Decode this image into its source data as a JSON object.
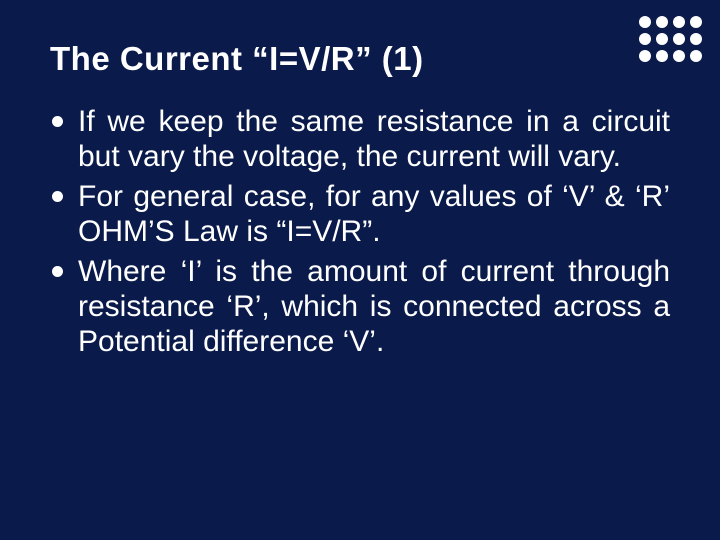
{
  "slide": {
    "background_color": "#0a1a4a",
    "text_color": "#ffffff",
    "title": "The Current “I=V/R” (1)",
    "title_fontsize": 33,
    "title_weight": "bold",
    "bullet_fontsize": 30,
    "bullet_marker": {
      "shape": "circle",
      "size": 11,
      "color": "#ffffff"
    },
    "bullets": [
      "If we keep the same resistance in a circuit but vary the voltage, the current will vary.",
      "For general case, for any values of ‘V’ & ‘R’ OHM’S Law is “I=V/R”.",
      "Where ‘I’ is the amount of current through resistance ‘R’, which is connected across a Potential difference ‘V’."
    ],
    "corner_decoration": {
      "type": "dot-grid",
      "rows": 3,
      "cols": 4,
      "dot_size": 12,
      "gap": 5,
      "color": "#ffffff"
    }
  }
}
